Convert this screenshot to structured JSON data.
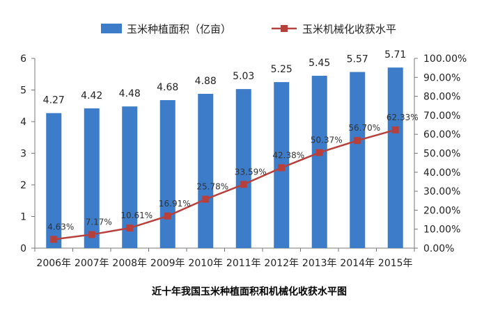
{
  "chart_data": {
    "type": "bar",
    "categories": [
      "2006年",
      "2007年",
      "2008年",
      "2009年",
      "2010年",
      "2011年",
      "2012年",
      "2013年",
      "2014年",
      "2015年"
    ],
    "series": [
      {
        "name": "玉米种植面积（亿亩）",
        "type": "bar",
        "axis": "left",
        "color": "#3d7cc9",
        "values": [
          4.27,
          4.42,
          4.48,
          4.68,
          4.88,
          5.03,
          5.25,
          5.45,
          5.57,
          5.71
        ],
        "labels": [
          "4.27",
          "4.42",
          "4.48",
          "4.68",
          "4.88",
          "5.03",
          "5.25",
          "5.45",
          "5.57",
          "5.71"
        ]
      },
      {
        "name": "玉米机械化收获水平",
        "type": "line",
        "axis": "right",
        "color": "#b8403c",
        "values": [
          4.63,
          7.17,
          10.61,
          16.91,
          25.78,
          33.59,
          42.38,
          50.37,
          56.7,
          62.33
        ],
        "labels": [
          "4.63%",
          "7.17%",
          "10.61%",
          "16.91%",
          "25.78%",
          "33.59%",
          "42.38%",
          "50.37%",
          "56.70%",
          "62.33%"
        ]
      }
    ],
    "y_left": {
      "range": [
        0,
        6
      ],
      "ticks": [
        "0",
        "1",
        "2",
        "3",
        "4",
        "5",
        "6"
      ]
    },
    "y_right": {
      "range": [
        0,
        100
      ],
      "ticks": [
        "0.00%",
        "10.00%",
        "20.00%",
        "30.00%",
        "40.00%",
        "50.00%",
        "60.00%",
        "70.00%",
        "80.00%",
        "90.00%",
        "100.00%"
      ]
    },
    "title": "近十年我国玉米种植面积和机械化收获水平图",
    "legend_position": "top",
    "grid": false
  }
}
